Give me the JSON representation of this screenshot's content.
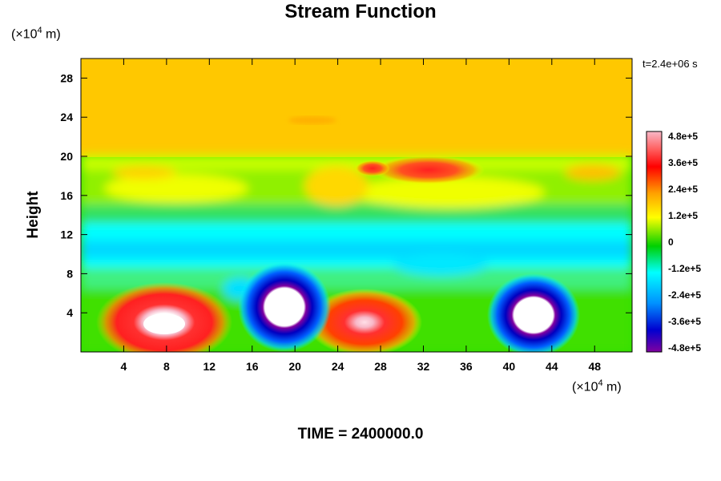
{
  "chart_data": {
    "type": "heatmap",
    "title": "Stream Function",
    "ylabel": "Height",
    "x_unit": {
      "prefix": "(×10",
      "exp": "4",
      "suffix": " m)"
    },
    "y_unit": {
      "prefix": "(×10",
      "exp": "4",
      "suffix": " m)"
    },
    "time_label": "t=2.4e+06 s",
    "footer": "TIME = 2400000.0",
    "xlim": [
      0,
      51.5
    ],
    "ylim": [
      0,
      30
    ],
    "x_ticks": [
      4,
      8,
      12,
      16,
      20,
      24,
      28,
      32,
      36,
      40,
      44,
      48
    ],
    "y_ticks": [
      4,
      8,
      12,
      16,
      20,
      24,
      28
    ],
    "colorbar": {
      "range": [
        -480000,
        480000
      ],
      "tick_values": [
        480000,
        360000,
        240000,
        120000,
        0,
        -120000,
        -240000,
        -360000,
        -480000
      ],
      "tick_labels": [
        "4.8e+5",
        "3.6e+5",
        "2.4e+5",
        "1.2e+5",
        "0",
        "-1.2e+5",
        "-2.4e+5",
        "-3.6e+5",
        "-4.8e+5"
      ],
      "colors": [
        "#f8b8c8",
        "#ff0000",
        "#ffa000",
        "#ffff00",
        "#00d000",
        "#00ffff",
        "#0090ff",
        "#0000d0",
        "#8000a0"
      ]
    },
    "background_value": 250000,
    "features": [
      {
        "name": "upper band red",
        "x": 33,
        "y": 18.2,
        "value": 380000
      },
      {
        "name": "positive vortex 1",
        "x": 7.7,
        "y": 2.7,
        "value": 520000
      },
      {
        "name": "negative vortex 1",
        "x": 18.5,
        "y": 4.3,
        "value": -520000
      },
      {
        "name": "positive vortex 2",
        "x": 25.5,
        "y": 2.8,
        "value": 470000
      },
      {
        "name": "negative vortex 2",
        "x": 42,
        "y": 3.7,
        "value": -520000
      }
    ]
  }
}
